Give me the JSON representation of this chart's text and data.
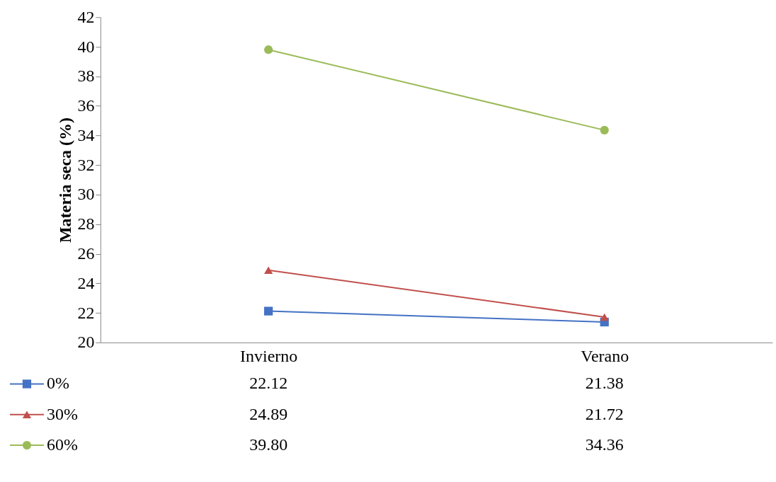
{
  "chart_data": {
    "type": "line",
    "ylabel": "Materia seca (%)",
    "categories": [
      "Invierno",
      "Verano"
    ],
    "ylim": [
      20,
      42
    ],
    "yticks": [
      20,
      22,
      24,
      26,
      28,
      30,
      32,
      34,
      36,
      38,
      40,
      42
    ],
    "grid": false,
    "legend": "bottom",
    "series": [
      {
        "name": "0%",
        "color": "#4472c4",
        "marker": "square",
        "values": [
          22.12,
          21.38
        ],
        "value_labels": [
          "22.12",
          "21.38"
        ]
      },
      {
        "name": "30%",
        "color": "#c0504d",
        "marker": "triangle",
        "values": [
          24.89,
          21.72
        ],
        "value_labels": [
          "24.89",
          "21.72"
        ]
      },
      {
        "name": "60%",
        "color": "#9bbb59",
        "marker": "circle",
        "values": [
          39.8,
          34.36
        ],
        "value_labels": [
          "39.80",
          "34.36"
        ]
      }
    ]
  }
}
